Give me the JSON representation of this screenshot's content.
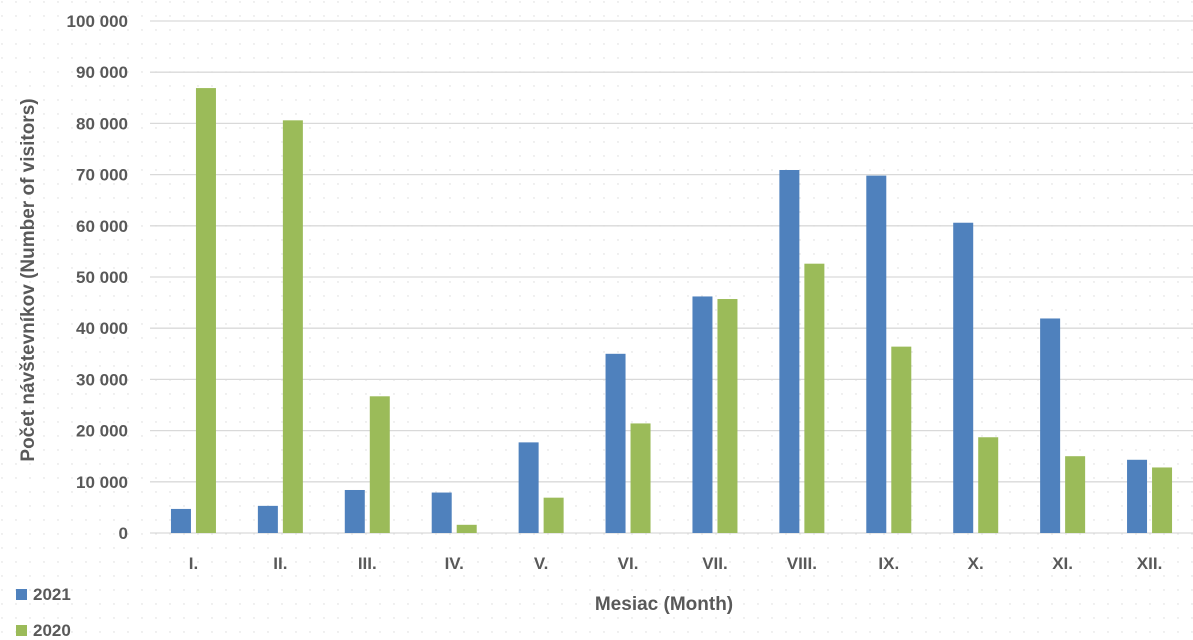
{
  "chart_data": {
    "type": "bar",
    "categories": [
      "I.",
      "II.",
      "III.",
      "IV.",
      "V.",
      "VI.",
      "VII.",
      "VIII.",
      "IX.",
      "X.",
      "XI.",
      "XII."
    ],
    "series": [
      {
        "name": "2021",
        "color": "#4f81bd",
        "values": [
          4700,
          5300,
          8400,
          7900,
          17700,
          35000,
          46200,
          70900,
          69800,
          60600,
          41900,
          14300
        ]
      },
      {
        "name": "2020",
        "color": "#9bbb59",
        "values": [
          86900,
          80600,
          26700,
          1600,
          6900,
          21400,
          45700,
          52600,
          36400,
          18700,
          15000,
          12800
        ]
      }
    ],
    "yticks": [
      "0",
      "10 000",
      "20 000",
      "30 000",
      "40 000",
      "50 000",
      "60 000",
      "70 000",
      "80 000",
      "90 000",
      "100 000"
    ],
    "ylim": [
      0,
      100000
    ],
    "xlabel": "Mesiac (Month)",
    "ylabel": "Počet návštevníkov (Number of visitors)",
    "grid": true,
    "legend_position": "bottom-left"
  }
}
